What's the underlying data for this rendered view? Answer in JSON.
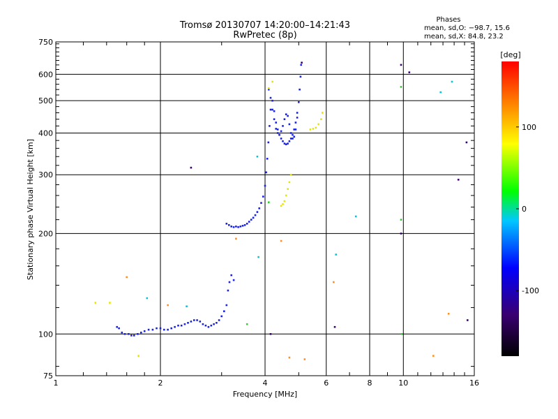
{
  "chart_data": {
    "type": "scatter",
    "title": "Tromsø 20130707 14:20:00–14:21:43",
    "subtitle": "RwPretec (8p)",
    "xlabel": "Frequency [MHz]",
    "ylabel": "Stationary phase Virtual Height [km]",
    "x_scale": "log",
    "y_scale": "log",
    "xlim": [
      1,
      16
    ],
    "ylim": [
      75,
      750
    ],
    "x_ticks": [
      1,
      2,
      4,
      6,
      8,
      10,
      16
    ],
    "y_ticks": [
      75,
      100,
      200,
      300,
      400,
      500,
      600,
      750
    ],
    "grid": true,
    "legend": {
      "title": "Phases",
      "lines": [
        "mean, sd,O: −98.7, 15.6",
        "mean, sd,X:  84.8, 23.2"
      ],
      "placement": "top-right"
    },
    "colorbar": {
      "label": "[deg]",
      "range": [
        -180,
        180
      ],
      "ticks": [
        100,
        0,
        -100
      ],
      "colors": [
        "#000000",
        "#3a0070",
        "#0000ff",
        "#00c8ff",
        "#00ff00",
        "#ffff00",
        "#ff8000",
        "#ff0000"
      ]
    },
    "series": [
      {
        "color": "#1a22e6",
        "mean_phase": -98.7,
        "points": [
          [
            1.5,
            105
          ],
          [
            1.52,
            104
          ],
          [
            1.55,
            101
          ],
          [
            1.58,
            100
          ],
          [
            1.62,
            100
          ],
          [
            1.65,
            99
          ],
          [
            1.68,
            99
          ],
          [
            1.72,
            100
          ],
          [
            1.76,
            101
          ],
          [
            1.8,
            102
          ],
          [
            1.85,
            103
          ],
          [
            1.9,
            103
          ],
          [
            1.95,
            104
          ],
          [
            2.0,
            104
          ],
          [
            2.05,
            103
          ],
          [
            2.1,
            103
          ],
          [
            2.15,
            104
          ],
          [
            2.2,
            105
          ],
          [
            2.25,
            106
          ],
          [
            2.3,
            106
          ],
          [
            2.35,
            107
          ],
          [
            2.4,
            108
          ],
          [
            2.45,
            109
          ],
          [
            2.5,
            110
          ],
          [
            2.55,
            110
          ],
          [
            2.6,
            109
          ],
          [
            2.65,
            107
          ],
          [
            2.7,
            106
          ],
          [
            2.75,
            105
          ],
          [
            2.8,
            106
          ],
          [
            2.85,
            107
          ],
          [
            2.9,
            108
          ],
          [
            2.95,
            110
          ],
          [
            3.0,
            113
          ],
          [
            3.05,
            117
          ],
          [
            3.1,
            122
          ],
          [
            3.13,
            135
          ],
          [
            3.16,
            143
          ],
          [
            3.2,
            150
          ],
          [
            3.25,
            145
          ],
          [
            3.1,
            214
          ],
          [
            3.15,
            212
          ],
          [
            3.2,
            210
          ],
          [
            3.25,
            209
          ],
          [
            3.3,
            210
          ],
          [
            3.35,
            209
          ],
          [
            3.4,
            210
          ],
          [
            3.45,
            211
          ],
          [
            3.5,
            212
          ],
          [
            3.55,
            214
          ],
          [
            3.6,
            217
          ],
          [
            3.65,
            220
          ],
          [
            3.7,
            223
          ],
          [
            3.75,
            227
          ],
          [
            3.8,
            232
          ],
          [
            3.85,
            238
          ],
          [
            3.9,
            247
          ],
          [
            3.95,
            258
          ],
          [
            4.0,
            278
          ],
          [
            4.03,
            305
          ],
          [
            4.06,
            335
          ],
          [
            4.09,
            375
          ],
          [
            4.12,
            420
          ],
          [
            4.15,
            470
          ],
          [
            4.2,
            500
          ],
          [
            4.25,
            465
          ],
          [
            4.3,
            430
          ],
          [
            4.35,
            410
          ],
          [
            4.4,
            395
          ],
          [
            4.45,
            385
          ],
          [
            4.5,
            378
          ],
          [
            4.55,
            372
          ],
          [
            4.6,
            370
          ],
          [
            4.65,
            372
          ],
          [
            4.7,
            378
          ],
          [
            4.75,
            385
          ],
          [
            4.8,
            395
          ],
          [
            4.85,
            410
          ],
          [
            4.9,
            430
          ],
          [
            4.95,
            460
          ],
          [
            5.0,
            495
          ],
          [
            5.03,
            540
          ],
          [
            5.06,
            590
          ],
          [
            5.08,
            640
          ],
          [
            4.1,
            540
          ],
          [
            4.15,
            510
          ],
          [
            4.2,
            470
          ],
          [
            4.25,
            440
          ],
          [
            4.3,
            412
          ],
          [
            4.35,
            400
          ],
          [
            4.4,
            395
          ],
          [
            4.45,
            405
          ],
          [
            4.5,
            420
          ],
          [
            4.55,
            440
          ],
          [
            4.6,
            455
          ],
          [
            4.65,
            450
          ],
          [
            4.7,
            425
          ],
          [
            4.75,
            400
          ],
          [
            4.8,
            385
          ],
          [
            4.85,
            390
          ],
          [
            4.9,
            410
          ],
          [
            4.95,
            445
          ]
        ]
      },
      {
        "color": "#e8e600",
        "mean_phase": 84.8,
        "points": [
          [
            4.45,
            242
          ],
          [
            4.5,
            245
          ],
          [
            4.55,
            250
          ],
          [
            4.6,
            260
          ],
          [
            4.65,
            272
          ],
          [
            4.7,
            285
          ],
          [
            4.75,
            300
          ],
          [
            5.4,
            410
          ],
          [
            5.5,
            412
          ],
          [
            5.6,
            415
          ],
          [
            5.7,
            425
          ],
          [
            5.8,
            440
          ],
          [
            5.85,
            460
          ],
          [
            4.1,
            545
          ],
          [
            4.2,
            570
          ],
          [
            1.3,
            124
          ],
          [
            1.43,
            124
          ],
          [
            1.73,
            86
          ]
        ]
      },
      {
        "color": "#00c8d8",
        "mean_phase": 20,
        "points": [
          [
            1.83,
            128
          ],
          [
            2.38,
            121
          ],
          [
            3.8,
            340
          ],
          [
            3.83,
            170
          ],
          [
            6.4,
            173
          ],
          [
            7.3,
            225
          ],
          [
            12.8,
            530
          ],
          [
            13.8,
            570
          ]
        ]
      },
      {
        "color": "#ff9020",
        "mean_phase": 150,
        "points": [
          [
            1.6,
            148
          ],
          [
            2.1,
            122
          ],
          [
            3.3,
            193
          ],
          [
            4.45,
            190
          ],
          [
            4.7,
            85
          ],
          [
            5.2,
            84
          ],
          [
            6.3,
            143
          ],
          [
            12.2,
            86
          ],
          [
            13.5,
            115
          ]
        ]
      },
      {
        "color": "#30d030",
        "mean_phase": 0,
        "points": [
          [
            3.55,
            107
          ],
          [
            4.1,
            248
          ],
          [
            9.85,
            550
          ],
          [
            9.85,
            220
          ],
          [
            9.9,
            100
          ]
        ]
      },
      {
        "color": "#3a0070",
        "mean_phase": -150,
        "points": [
          [
            2.45,
            315
          ],
          [
            4.15,
            100
          ],
          [
            5.1,
            650
          ],
          [
            6.35,
            105
          ],
          [
            9.85,
            640
          ],
          [
            10.4,
            608
          ],
          [
            9.85,
            200
          ],
          [
            14.4,
            290
          ],
          [
            15.2,
            375
          ],
          [
            15.3,
            110
          ]
        ]
      }
    ]
  }
}
